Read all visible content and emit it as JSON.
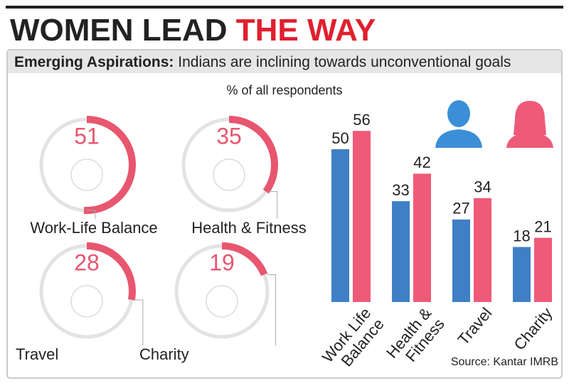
{
  "header": {
    "title_black": "WOMEN LEAD",
    "title_red": "THE WAY",
    "subtitle_bold": "Emerging Aspirations:",
    "subtitle": "Indians are inclining towards unconventional goals",
    "note": "% of all respondents",
    "source": "Source: Kantar IMRB"
  },
  "chart_data": [
    {
      "type": "gauge",
      "categories": [
        "Work-Life Balance",
        "Health & Fitness",
        "Travel",
        "Charity"
      ],
      "values": [
        51,
        35,
        28,
        19
      ],
      "color": "#e8566f",
      "track_color": "#e3e3e3",
      "ylim": [
        0,
        100
      ]
    },
    {
      "type": "bar",
      "categories": [
        "Work Life Balance",
        "Health & Fitness",
        "Travel",
        "Charity"
      ],
      "series": [
        {
          "color": "#3f7fc6",
          "values": [
            50,
            33,
            27,
            18
          ]
        },
        {
          "color": "#ef5a78",
          "values": [
            56,
            42,
            34,
            21
          ]
        }
      ],
      "ylim": [
        0,
        60
      ]
    }
  ]
}
